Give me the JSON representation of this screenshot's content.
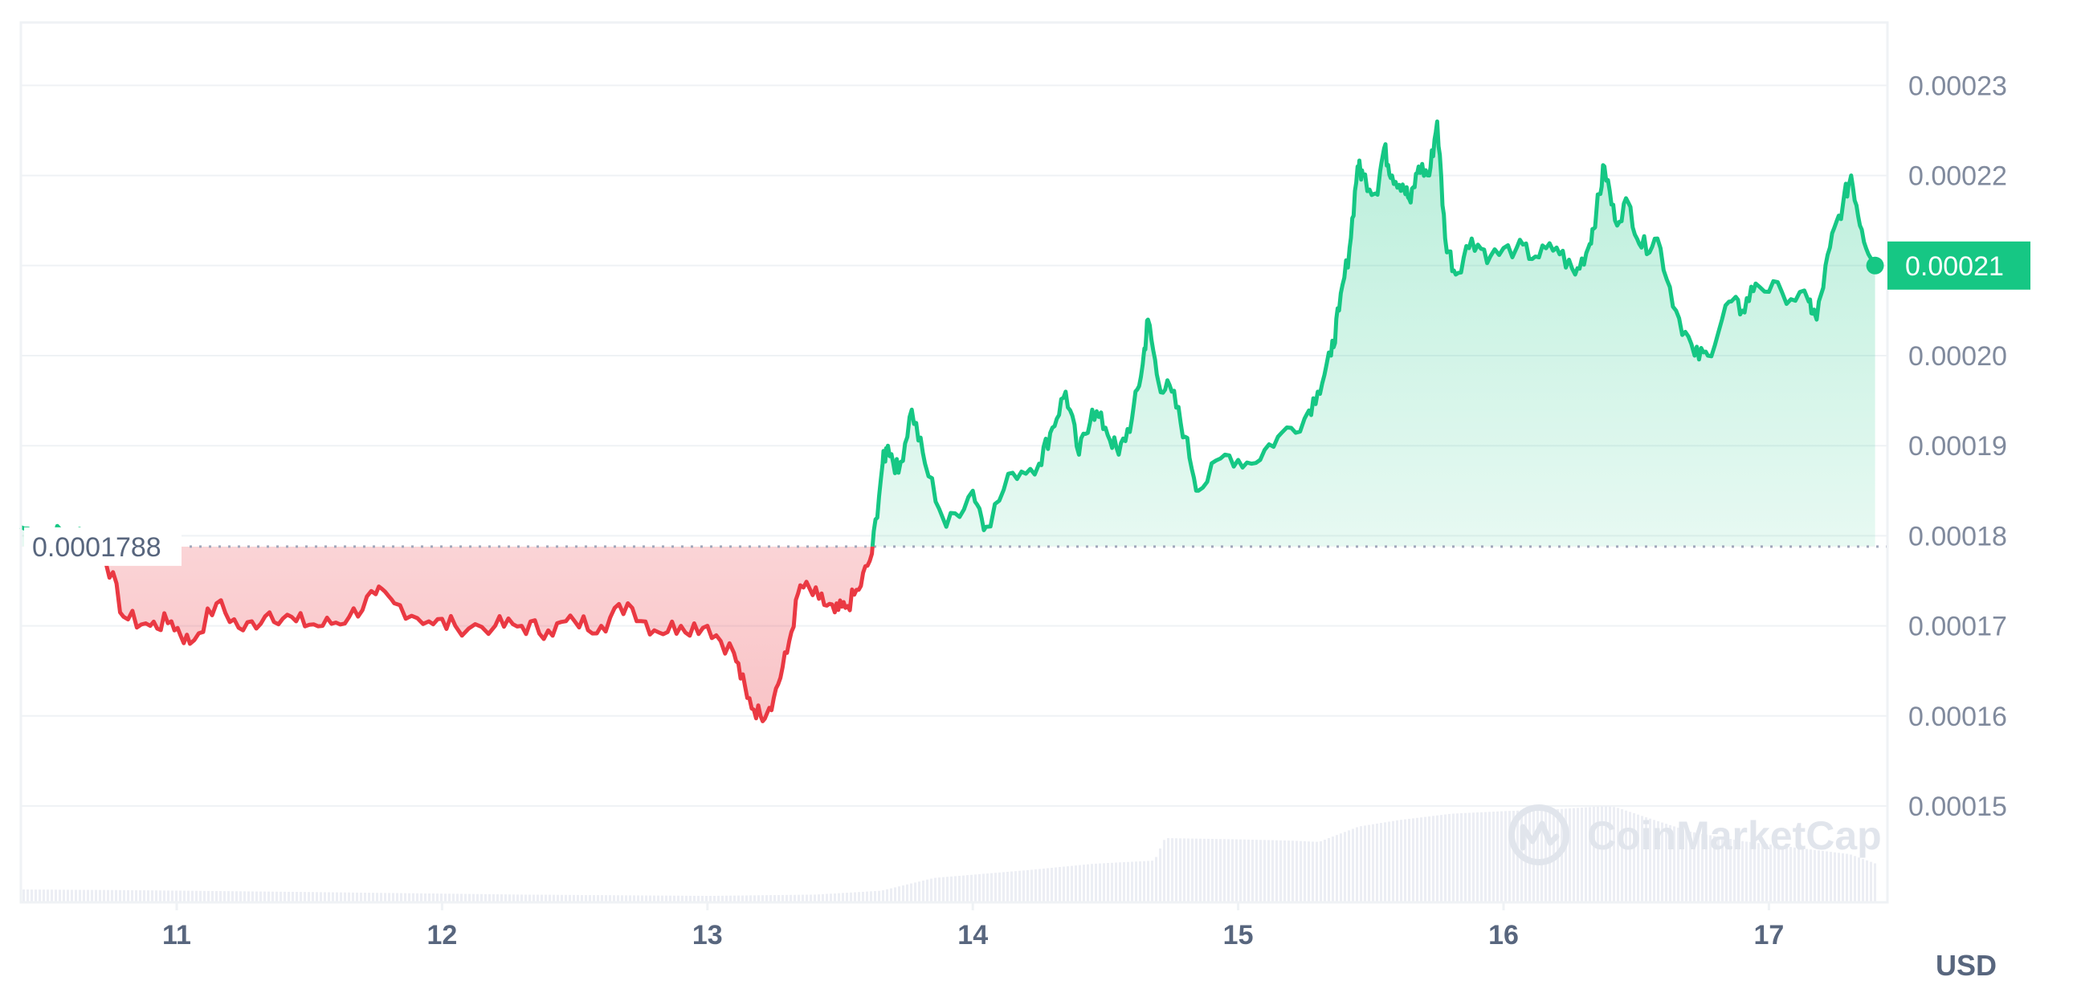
{
  "chart_data": {
    "type": "line",
    "currency_unit": "USD",
    "reference_value": 0.0001788,
    "reference_label": "0.0001788",
    "current_value": 0.00021,
    "current_label": "0.00021",
    "ylim": [
      0.00014,
      0.000237
    ],
    "y_ticks": [
      {
        "value": 0.00023,
        "label": "0.00023"
      },
      {
        "value": 0.00022,
        "label": "0.00022"
      },
      {
        "value": 0.00021,
        "label": "0.00021"
      },
      {
        "value": 0.0002,
        "label": "0.00020"
      },
      {
        "value": 0.00019,
        "label": "0.00019"
      },
      {
        "value": 0.00018,
        "label": "0.00018"
      },
      {
        "value": 0.00017,
        "label": "0.00017"
      },
      {
        "value": 0.00016,
        "label": "0.00016"
      },
      {
        "value": 0.00015,
        "label": "0.00015"
      }
    ],
    "xlim": [
      10.41,
      17.46
    ],
    "x_ticks": [
      {
        "value": 11,
        "label": "11"
      },
      {
        "value": 12,
        "label": "12"
      },
      {
        "value": 13,
        "label": "13"
      },
      {
        "value": 14,
        "label": "14"
      },
      {
        "value": 15,
        "label": "15"
      },
      {
        "value": 16,
        "label": "16"
      },
      {
        "value": 17,
        "label": "17"
      }
    ],
    "grid": true,
    "colors": {
      "up": "#16c784",
      "down": "#ea3943",
      "reference": "#a1a7bb",
      "volume": "#eceef4",
      "grid": "#eff2f5"
    },
    "price_series": {
      "x": [
        10.41,
        10.5,
        10.6,
        10.7,
        10.72,
        10.8,
        10.9,
        10.98,
        11.05,
        11.15,
        11.25,
        11.35,
        11.45,
        11.55,
        11.65,
        11.75,
        11.82,
        11.95,
        12.05,
        12.2,
        12.3,
        12.4,
        12.5,
        12.6,
        12.7,
        12.8,
        12.9,
        13.0,
        13.1,
        13.15,
        13.2,
        13.25,
        13.3,
        13.35,
        13.42,
        13.48,
        13.52,
        13.57,
        13.62,
        13.66,
        13.68,
        13.72,
        13.77,
        13.82,
        13.9,
        14.0,
        14.05,
        14.15,
        14.25,
        14.3,
        14.35,
        14.4,
        14.45,
        14.5,
        14.55,
        14.6,
        14.64,
        14.66,
        14.7,
        14.75,
        14.8,
        14.85,
        14.95,
        15.05,
        15.15,
        15.25,
        15.3,
        15.35,
        15.38,
        15.42,
        15.45,
        15.47,
        15.52,
        15.55,
        15.58,
        15.62,
        15.65,
        15.68,
        15.72,
        15.75,
        15.78,
        15.82,
        15.88,
        15.95,
        16.05,
        16.12,
        16.2,
        16.27,
        16.32,
        16.35,
        16.38,
        16.42,
        16.47,
        16.52,
        16.58,
        16.65,
        16.72,
        16.77,
        16.85,
        16.9,
        16.95,
        17.05,
        17.15,
        17.18,
        17.23,
        17.28,
        17.31,
        17.35,
        17.4
      ],
      "y": [
        0.000181,
        0.00018,
        0.0001805,
        0.0001795,
        0.000179,
        0.000171,
        0.00017,
        0.0001705,
        0.000168,
        0.0001725,
        0.0001695,
        0.0001715,
        0.0001705,
        0.00017,
        0.000171,
        0.0001735,
        0.0001725,
        0.0001705,
        0.00017,
        0.00017,
        0.00017,
        0.0001695,
        0.0001705,
        0.00017,
        0.0001725,
        0.0001695,
        0.00017,
        0.00017,
        0.000167,
        0.000162,
        0.00016,
        0.000162,
        0.000167,
        0.0001745,
        0.000173,
        0.0001715,
        0.000172,
        0.000174,
        0.000178,
        0.000188,
        0.00019,
        0.000187,
        0.000194,
        0.000188,
        0.000181,
        0.000185,
        0.000181,
        0.000187,
        0.000188,
        0.000192,
        0.000196,
        0.000189,
        0.000194,
        0.000192,
        0.000189,
        0.000193,
        0.000199,
        0.000204,
        0.000197,
        0.000196,
        0.000191,
        0.000185,
        0.000189,
        0.000188,
        0.000191,
        0.000193,
        0.000196,
        0.0002,
        0.000205,
        0.000212,
        0.000221,
        0.00022,
        0.000218,
        0.000223,
        0.00022,
        0.000219,
        0.000217,
        0.000221,
        0.00022,
        0.000226,
        0.000213,
        0.000209,
        0.000213,
        0.000211,
        0.000212,
        0.000211,
        0.000212,
        0.000209,
        0.000212,
        0.000216,
        0.000221,
        0.000215,
        0.000217,
        0.000212,
        0.000213,
        0.000205,
        0.0002,
        0.0002,
        0.000206,
        0.000205,
        0.000208,
        0.000207,
        0.000206,
        0.000204,
        0.000212,
        0.000217,
        0.00022,
        0.000214,
        0.00021
      ]
    },
    "volume_profile": {
      "note": "",
      "x": [
        10.41,
        10.8,
        11.5,
        12.3,
        13.0,
        13.4,
        13.65,
        13.85,
        14.2,
        14.45,
        14.68,
        14.72,
        15.0,
        15.2,
        15.3,
        15.45,
        15.6,
        15.8,
        16.0,
        16.2,
        16.38,
        16.42,
        16.55,
        16.7,
        16.9,
        17.1,
        17.3,
        17.4
      ],
      "level": [
        0.2,
        0.19,
        0.16,
        0.12,
        0.1,
        0.12,
        0.18,
        0.38,
        0.5,
        0.6,
        0.65,
        1.0,
        0.98,
        0.96,
        0.94,
        1.18,
        1.28,
        1.38,
        1.42,
        1.45,
        1.5,
        1.48,
        1.3,
        1.1,
        0.95,
        0.85,
        0.75,
        0.6
      ]
    },
    "watermark": "CoinMarketCap"
  }
}
